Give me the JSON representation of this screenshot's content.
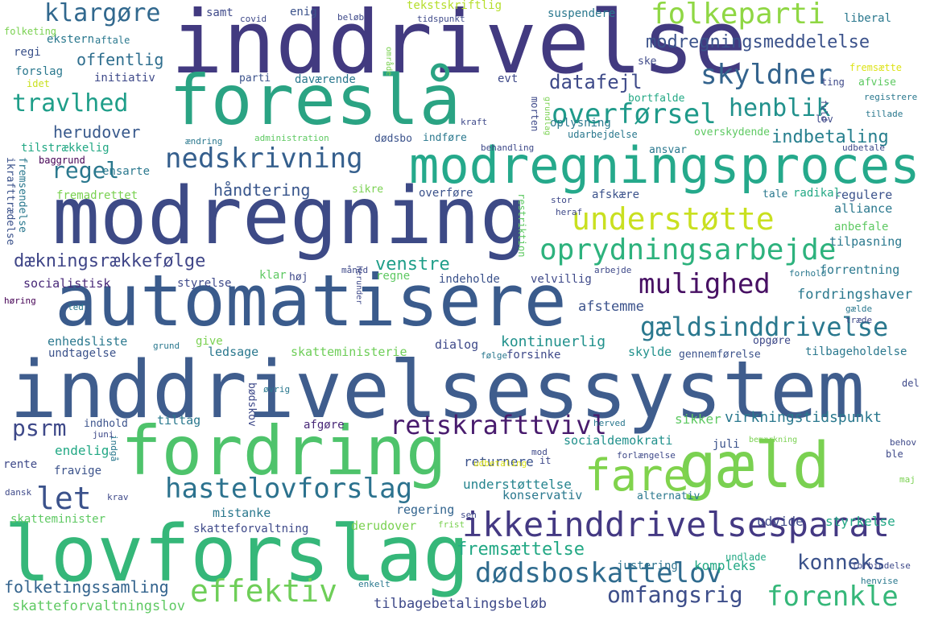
{
  "words": [
    {
      "text": "inddrivelsessystem",
      "color": "#3f5d8d"
    },
    {
      "text": "inddrivelse",
      "color": "#423a80"
    },
    {
      "text": "modregning",
      "color": "#3d4a86"
    },
    {
      "text": "automatisere",
      "color": "#3a5b8c"
    },
    {
      "text": "foreslå",
      "color": "#2aa383"
    },
    {
      "text": "modregningsproces",
      "color": "#25a98b"
    },
    {
      "text": "lovforslag",
      "color": "#35b779"
    },
    {
      "text": "fordring",
      "color": "#4ec36b"
    },
    {
      "text": "gæld",
      "color": "#7ad151"
    },
    {
      "text": "fare",
      "color": "#80d34c"
    },
    {
      "text": "ikkeinddrivelsesparat",
      "color": "#443983"
    },
    {
      "text": "retskrafttvivl",
      "color": "#481b6d"
    },
    {
      "text": "understøtte",
      "color": "#c9e020"
    },
    {
      "text": "oprydningsarbejde",
      "color": "#2db27d"
    },
    {
      "text": "mulighed",
      "color": "#471063"
    },
    {
      "text": "gældsinddrivelse",
      "color": "#2a788e"
    },
    {
      "text": "nedskrivning",
      "color": "#355f8d"
    },
    {
      "text": "hastelovforslag",
      "color": "#2c728e"
    },
    {
      "text": "dødsboskattelov",
      "color": "#2f6b8e"
    },
    {
      "text": "effektiv",
      "color": "#6ece58"
    },
    {
      "text": "forenkle",
      "color": "#35b779"
    },
    {
      "text": "omfangsrig",
      "color": "#3d4e8a"
    },
    {
      "text": "let",
      "color": "#3b528b"
    },
    {
      "text": "folkeparti",
      "color": "#8fd744"
    },
    {
      "text": "skyldner",
      "color": "#33638d"
    },
    {
      "text": "overførsel",
      "color": "#1f9a8a"
    },
    {
      "text": "henblik",
      "color": "#21918c"
    },
    {
      "text": "travlhed",
      "color": "#1f9e89"
    },
    {
      "text": "klargøre",
      "color": "#31688e"
    },
    {
      "text": "regel",
      "color": "#2a788e"
    },
    {
      "text": "psrm",
      "color": "#3e4989"
    },
    {
      "text": "konneks",
      "color": "#3b528b"
    },
    {
      "text": "fremsættelse",
      "color": "#22a884"
    },
    {
      "text": "modregningsmeddelelse",
      "color": "#3b528b"
    },
    {
      "text": "datafejl",
      "color": "#3e4a89"
    },
    {
      "text": "indbetaling",
      "color": "#277f8e"
    },
    {
      "text": "dækningsrækkefølge",
      "color": "#404688"
    },
    {
      "text": "venstre",
      "color": "#1f9e89"
    },
    {
      "text": "håndtering",
      "color": "#39568c"
    },
    {
      "text": "herudover",
      "color": "#38598c"
    },
    {
      "text": "offentlig",
      "color": "#2e6e8e"
    },
    {
      "text": "virkningstidspunkt",
      "color": "#2a788e"
    },
    {
      "text": "kontinuerlig",
      "color": "#21918c"
    },
    {
      "text": "afstemme",
      "color": "#3b528b"
    },
    {
      "text": "fordringshaver",
      "color": "#2a788e"
    },
    {
      "text": "folketingssamling",
      "color": "#33638d"
    },
    {
      "text": "skatteforvaltningslov",
      "color": "#5ec962"
    },
    {
      "text": "tilbagebetalingsbeløb",
      "color": "#3e4989"
    },
    {
      "text": "kompleks",
      "color": "#22a884"
    },
    {
      "text": "justering",
      "color": "#2c728e"
    },
    {
      "text": "udvide",
      "color": "#3e4989"
    },
    {
      "text": "styrkelse",
      "color": "#22a884"
    },
    {
      "text": "understøttelse",
      "color": "#25848e"
    },
    {
      "text": "socialdemokrati",
      "color": "#21918c"
    },
    {
      "text": "returnere",
      "color": "#3b528b"
    },
    {
      "text": "regering",
      "color": "#32648e"
    },
    {
      "text": "konservativ",
      "color": "#2a788e"
    },
    {
      "text": "skatteforvaltning",
      "color": "#3e4989"
    },
    {
      "text": "derudover",
      "color": "#7ad151"
    },
    {
      "text": "mistanke",
      "color": "#2a788e"
    },
    {
      "text": "skatteminister",
      "color": "#5ec962"
    },
    {
      "text": "endelig",
      "color": "#22a884"
    },
    {
      "text": "fravige",
      "color": "#3b528b"
    },
    {
      "text": "rente",
      "color": "#3e4989"
    },
    {
      "text": "tiltag",
      "color": "#2a788e"
    },
    {
      "text": "indhold",
      "color": "#3b528b"
    },
    {
      "text": "bødskov",
      "color": "#3e4989"
    },
    {
      "text": "afgøre",
      "color": "#482878"
    },
    {
      "text": "sikker",
      "color": "#5ec962"
    },
    {
      "text": "juli",
      "color": "#3b528b"
    },
    {
      "text": "ledsage",
      "color": "#2a788e"
    },
    {
      "text": "skatteministerie",
      "color": "#6ece58"
    },
    {
      "text": "dialog",
      "color": "#3e4989"
    },
    {
      "text": "forsinke",
      "color": "#3e4989"
    },
    {
      "text": "skylde",
      "color": "#21918c"
    },
    {
      "text": "tilbageholdelse",
      "color": "#2a788e"
    },
    {
      "text": "gennemførelse",
      "color": "#3b528b"
    },
    {
      "text": "opgøre",
      "color": "#3e4989"
    },
    {
      "text": "enhedsliste",
      "color": "#2a788e"
    },
    {
      "text": "undtagelse",
      "color": "#3b528b"
    },
    {
      "text": "give",
      "color": "#7ad151"
    },
    {
      "text": "socialistisk",
      "color": "#482878"
    },
    {
      "text": "styrelse",
      "color": "#3e4989"
    },
    {
      "text": "klar",
      "color": "#5ec962"
    },
    {
      "text": "høj",
      "color": "#3e4989"
    },
    {
      "text": "regne",
      "color": "#5ec962"
    },
    {
      "text": "indeholde",
      "color": "#3b528b"
    },
    {
      "text": "velvillig",
      "color": "#3e4989"
    },
    {
      "text": "forrentning",
      "color": "#2a788e"
    },
    {
      "text": "tilpasning",
      "color": "#2a788e"
    },
    {
      "text": "alliance",
      "color": "#2a788e"
    },
    {
      "text": "anbefale",
      "color": "#5ec962"
    },
    {
      "text": "regulere",
      "color": "#3b528b"
    },
    {
      "text": "radikal",
      "color": "#22a884"
    },
    {
      "text": "tale",
      "color": "#2a788e"
    },
    {
      "text": "afskære",
      "color": "#3b528b"
    },
    {
      "text": "overføre",
      "color": "#3b528b"
    },
    {
      "text": "sikre",
      "color": "#7ad151"
    },
    {
      "text": "fremadrettet",
      "color": "#7ad151"
    },
    {
      "text": "ensarte",
      "color": "#2a788e"
    },
    {
      "text": "baggrund",
      "color": "#440154"
    },
    {
      "text": "tilstrækkelig",
      "color": "#22a884"
    },
    {
      "text": "ekstern",
      "color": "#2a788e"
    },
    {
      "text": "regi",
      "color": "#3b528b"
    },
    {
      "text": "forslag",
      "color": "#2a788e"
    },
    {
      "text": "initiativ",
      "color": "#3e4989"
    },
    {
      "text": "idet",
      "color": "#c9e020"
    },
    {
      "text": "folketing",
      "color": "#7ad151"
    },
    {
      "text": "aftale",
      "color": "#2a788e"
    },
    {
      "text": "samt",
      "color": "#3e4989"
    },
    {
      "text": "covid",
      "color": "#3e4989"
    },
    {
      "text": "enig",
      "color": "#3b528b"
    },
    {
      "text": "beløb",
      "color": "#3e4989"
    },
    {
      "text": "tekstskriftlig",
      "color": "#b5de2b"
    },
    {
      "text": "tidspunkt",
      "color": "#3e4989"
    },
    {
      "text": "suspendere",
      "color": "#2a788e"
    },
    {
      "text": "liberal",
      "color": "#2a788e"
    },
    {
      "text": "område",
      "color": "#7ad151"
    },
    {
      "text": "parti",
      "color": "#3b528b"
    },
    {
      "text": "daværende",
      "color": "#2a788e"
    },
    {
      "text": "evt",
      "color": "#3e4989"
    },
    {
      "text": "oplysning",
      "color": "#2a788e"
    },
    {
      "text": "ske",
      "color": "#3e4989"
    },
    {
      "text": "fremsætte",
      "color": "#dde318"
    },
    {
      "text": "ting",
      "color": "#3e4989"
    },
    {
      "text": "afvise",
      "color": "#5ec962"
    },
    {
      "text": "registrere",
      "color": "#2a788e"
    },
    {
      "text": "tillade",
      "color": "#2a788e"
    },
    {
      "text": "bortfalde",
      "color": "#22a884"
    },
    {
      "text": "morten",
      "color": "#3e4989"
    },
    {
      "text": "grundlag",
      "color": "#7ad151"
    },
    {
      "text": "udarbejdelse",
      "color": "#2a788e"
    },
    {
      "text": "kraft",
      "color": "#3e4989"
    },
    {
      "text": "fuld",
      "color": "#3e4989"
    },
    {
      "text": "lov",
      "color": "#3e4989"
    },
    {
      "text": "overskydende",
      "color": "#5ec962"
    },
    {
      "text": "ansvar",
      "color": "#2a788e"
    },
    {
      "text": "udbetale",
      "color": "#3e4989"
    },
    {
      "text": "dødsbo",
      "color": "#3b528b"
    },
    {
      "text": "indføre",
      "color": "#2a788e"
    },
    {
      "text": "behandling",
      "color": "#3e4989"
    },
    {
      "text": "administration",
      "color": "#5ec962"
    },
    {
      "text": "ændring",
      "color": "#2a788e"
    },
    {
      "text": "ikrafttrædelse",
      "color": "#3b528b"
    },
    {
      "text": "fremsendelse",
      "color": "#2a788e"
    },
    {
      "text": "restriktion",
      "color": "#5ec962"
    },
    {
      "text": "stor",
      "color": "#3e4989"
    },
    {
      "text": "heraf",
      "color": "#3e4989"
    },
    {
      "text": "måned",
      "color": "#3e4989"
    },
    {
      "text": "arbejde",
      "color": "#3e4989"
    },
    {
      "text": "forhold",
      "color": "#2a788e"
    },
    {
      "text": "herunder",
      "color": "#3e4989"
    },
    {
      "text": "høring",
      "color": "#440154"
    },
    {
      "text": "led",
      "color": "#2a788e"
    },
    {
      "text": "gælde",
      "color": "#2a788e"
    },
    {
      "text": "træde",
      "color": "#3e4989"
    },
    {
      "text": "grund",
      "color": "#2a788e"
    },
    {
      "text": "følge",
      "color": "#2a788e"
    },
    {
      "text": "øvrig",
      "color": "#2a788e"
    },
    {
      "text": "del",
      "color": "#3e4989"
    },
    {
      "text": "herved",
      "color": "#2a788e"
    },
    {
      "text": "bemærkning",
      "color": "#7ad151"
    },
    {
      "text": "behov",
      "color": "#3e4989"
    },
    {
      "text": "ble",
      "color": "#3e4989"
    },
    {
      "text": "maj",
      "color": "#7ad151"
    },
    {
      "text": "indgå",
      "color": "#2a788e"
    },
    {
      "text": "juni",
      "color": "#3e4989"
    },
    {
      "text": "it",
      "color": "#3e4989"
    },
    {
      "text": "mod",
      "color": "#3e4989"
    },
    {
      "text": "udbetaling",
      "color": "#dde318"
    },
    {
      "text": "forlængelse",
      "color": "#3e4989"
    },
    {
      "text": "dansk",
      "color": "#3e4989"
    },
    {
      "text": "krav",
      "color": "#3e4989"
    },
    {
      "text": "sen",
      "color": "#3e4989"
    },
    {
      "text": "frist",
      "color": "#7ad151"
    },
    {
      "text": "alternativ",
      "color": "#2a788e"
    },
    {
      "text": "undlade",
      "color": "#22a884"
    },
    {
      "text": "forbindelse",
      "color": "#3e4989"
    },
    {
      "text": "henvise",
      "color": "#2a788e"
    },
    {
      "text": "enkelt",
      "color": "#2a788e"
    }
  ]
}
